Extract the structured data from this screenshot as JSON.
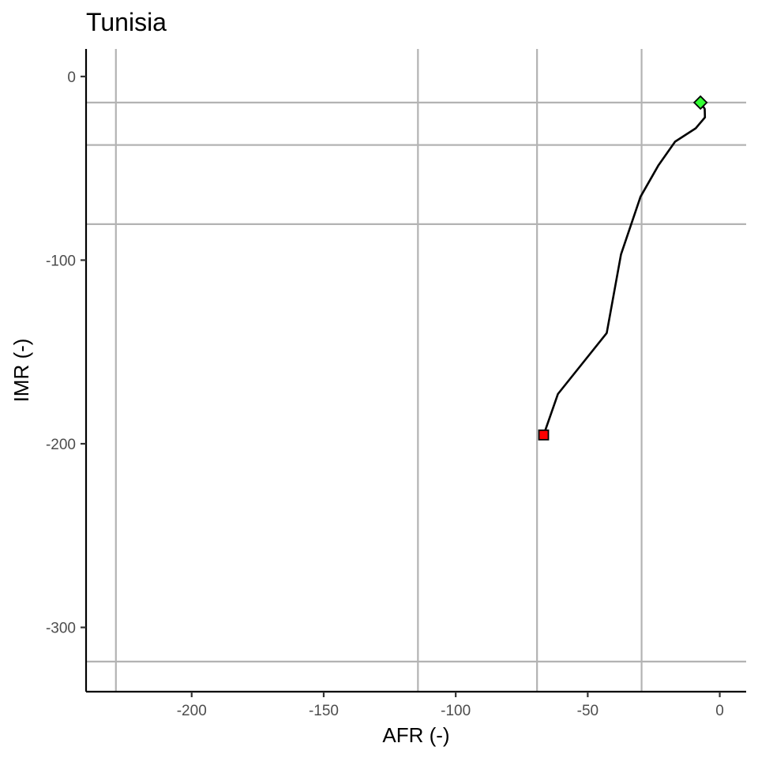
{
  "chart_data": {
    "type": "line",
    "title": "Tunisia",
    "xlabel": "AFR (-)",
    "ylabel": "IMR (-)",
    "xlim": [
      -240,
      10
    ],
    "ylim": [
      -335,
      15
    ],
    "x_ticks": [
      -200,
      -150,
      -100,
      -50,
      0
    ],
    "y_ticks": [
      0,
      -100,
      -200,
      -300
    ],
    "x_tick_labels": [
      "-200",
      "-150",
      "-100",
      "-50",
      "0"
    ],
    "y_tick_labels": [
      "0",
      "-100",
      "-200",
      "-300"
    ],
    "grid": false,
    "reference_lines": {
      "vertical": [
        -228.7,
        -114.3,
        -69.2,
        -29.6
      ],
      "horizontal": [
        -14.2,
        -37.3,
        -80.4,
        -318.6
      ]
    },
    "series": [
      {
        "x": [
          -66.7,
          -61.3,
          -42.8,
          -37.4,
          -30.0,
          -23.2,
          -16.9,
          -9.1,
          -5.6,
          -5.7,
          -7.3
        ],
        "y": [
          -195.2,
          -172.9,
          -139.7,
          -96.9,
          -65.5,
          -48.3,
          -35.5,
          -28.2,
          -22.3,
          -17.6,
          -14.2
        ]
      }
    ],
    "start_marker": {
      "x": -66.7,
      "y": -195.2,
      "shape": "square",
      "color": "#ff0000"
    },
    "end_marker": {
      "x": -7.3,
      "y": -14.2,
      "shape": "diamond",
      "color": "#33ff33"
    }
  }
}
